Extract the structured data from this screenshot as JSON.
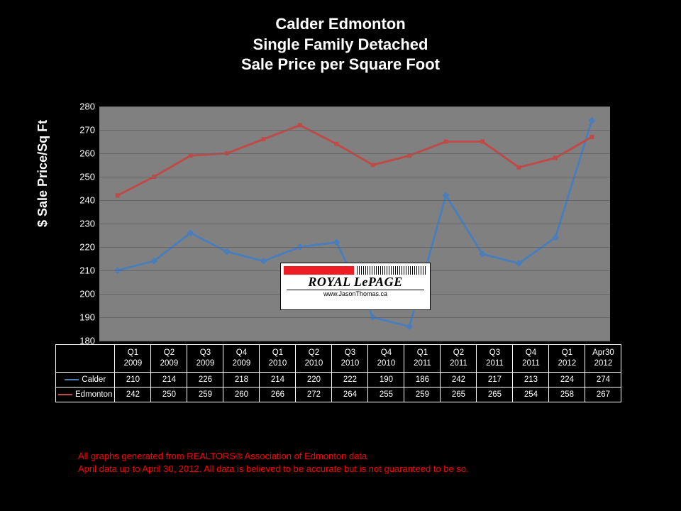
{
  "title": {
    "line1": "Calder Edmonton",
    "line2": "Single Family Detached",
    "line3": "Sale Price per Square Foot",
    "color": "#ffffff",
    "fontsize": 22
  },
  "chart": {
    "type": "line",
    "background_color": "#808080",
    "grid_color": "#666666",
    "ylabel": "$ Sale Price/Sq Ft",
    "ylabel_color": "#ffffff",
    "ylabel_fontsize": 18,
    "ylim": [
      180,
      280
    ],
    "yticks": [
      180,
      190,
      200,
      210,
      220,
      230,
      240,
      250,
      260,
      270,
      280
    ],
    "categories": [
      "Q1 2009",
      "Q2 2009",
      "Q3 2009",
      "Q4 2009",
      "Q1 2010",
      "Q2 2010",
      "Q3 2010",
      "Q4 2010",
      "Q1 2011",
      "Q2 2011",
      "Q3 2011",
      "Q4 2011",
      "Q1 2012",
      "Apr30 2012"
    ],
    "series": [
      {
        "name": "Calder",
        "color": "#4a7ebb",
        "line_width": 3,
        "marker": "diamond",
        "marker_size": 7,
        "values": [
          210,
          214,
          226,
          218,
          214,
          220,
          222,
          190,
          186,
          242,
          217,
          213,
          224,
          274
        ]
      },
      {
        "name": "Edmonton",
        "color": "#be4b48",
        "line_width": 3,
        "marker": "square",
        "marker_size": 6,
        "values": [
          242,
          250,
          259,
          260,
          266,
          272,
          264,
          255,
          259,
          265,
          265,
          254,
          258,
          267
        ]
      }
    ]
  },
  "logo": {
    "brand": "ROYAL LePAGE",
    "url": "www.JasonThomas.ca",
    "accent_color": "#ee1c25"
  },
  "footer": {
    "line1": "All graphs generated from REALTORS® Association of Edmonton data",
    "line2": "April data up to April 30, 2012.   All data is believed to be accurate but is not guaranteed to be so.",
    "color": "#ff0000",
    "fontsize": 13
  }
}
